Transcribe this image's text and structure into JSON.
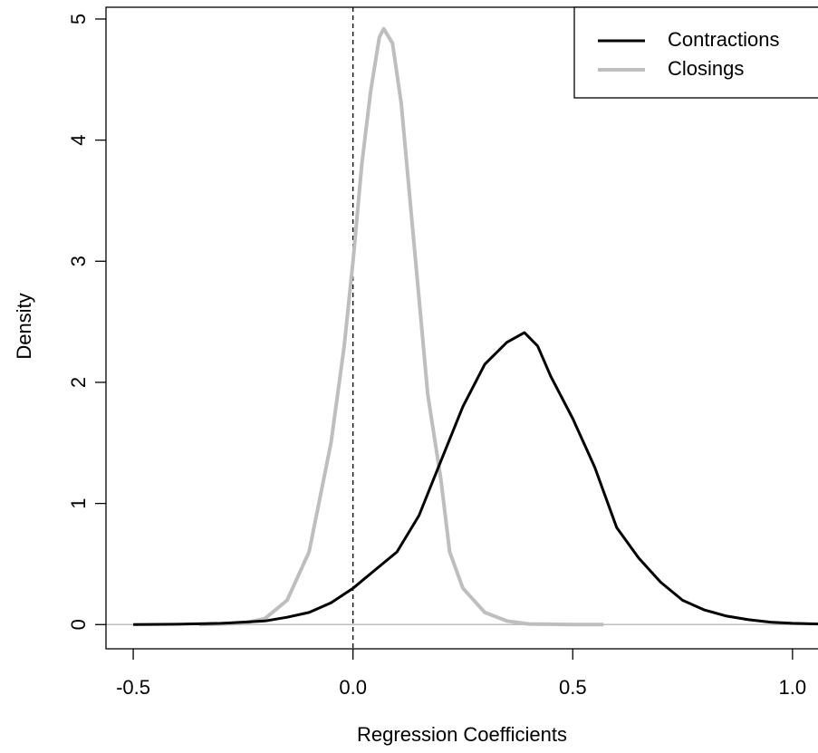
{
  "chart_data": {
    "type": "line",
    "x_label": "Regression Coefficients",
    "y_label": "Density",
    "xlim": [
      -0.562,
      1.058
    ],
    "ylim": [
      -0.2,
      5.097
    ],
    "xticks": [
      -0.5,
      {
        "value": 0,
        "label": "0.0"
      },
      0.5,
      {
        "value": 1,
        "label": "1.0"
      }
    ],
    "yticks": [
      0,
      1,
      2,
      3,
      4,
      5
    ],
    "vline": 0,
    "hline": 0,
    "legend": "top-right",
    "series": [
      {
        "name": "Contractions",
        "color": "#000000",
        "x": [
          -0.5,
          -0.4,
          -0.3,
          -0.2,
          -0.15,
          -0.1,
          -0.05,
          0,
          0.05,
          0.1,
          0.15,
          0.2,
          0.25,
          0.3,
          0.35,
          0.39,
          0.42,
          0.45,
          0.5,
          0.55,
          0.6,
          0.65,
          0.7,
          0.75,
          0.8,
          0.85,
          0.9,
          0.95,
          1.0,
          1.06
        ],
        "values": [
          0,
          0.003,
          0.01,
          0.03,
          0.06,
          0.1,
          0.18,
          0.3,
          0.45,
          0.6,
          0.9,
          1.35,
          1.8,
          2.15,
          2.33,
          2.41,
          2.3,
          2.05,
          1.7,
          1.3,
          0.8,
          0.55,
          0.35,
          0.2,
          0.12,
          0.07,
          0.04,
          0.02,
          0.01,
          0.005
        ]
      },
      {
        "name": "Closings",
        "color": "#bebebe",
        "x": [
          -0.35,
          -0.25,
          -0.2,
          -0.15,
          -0.1,
          -0.05,
          -0.02,
          0,
          0.02,
          0.04,
          0.06,
          0.07,
          0.09,
          0.11,
          0.13,
          0.15,
          0.17,
          0.2,
          0.22,
          0.25,
          0.28,
          0.3,
          0.35,
          0.4,
          0.5,
          0.57
        ],
        "values": [
          0,
          0.01,
          0.05,
          0.2,
          0.6,
          1.5,
          2.3,
          3.0,
          3.8,
          4.4,
          4.85,
          4.92,
          4.8,
          4.3,
          3.5,
          2.7,
          1.9,
          1.2,
          0.6,
          0.3,
          0.18,
          0.1,
          0.03,
          0.005,
          0,
          0
        ]
      }
    ]
  }
}
